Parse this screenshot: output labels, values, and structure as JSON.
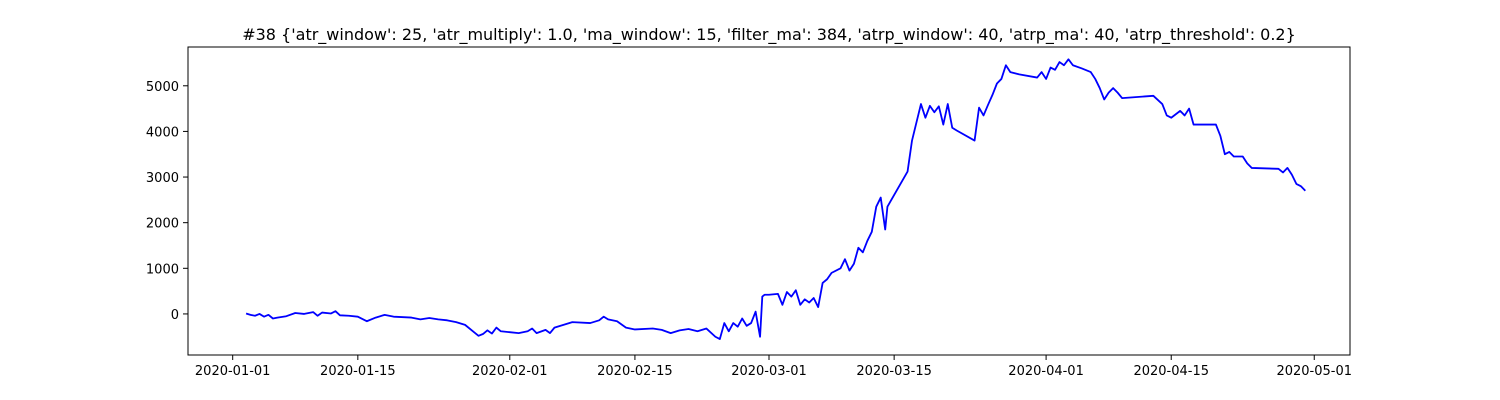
{
  "chart_data": {
    "type": "line",
    "title": "#38 {'atr_window': 25, 'atr_multiply': 1.0, 'ma_window': 15, 'filter_ma': 384, 'atrp_window': 40, 'atrp_ma': 40, 'atrp_threshold': 0.2}",
    "xlabel": "",
    "ylabel": "",
    "xlim": [
      "2019-12-27",
      "2020-05-05"
    ],
    "ylim": [
      -900,
      5850
    ],
    "grid": false,
    "x_ticks": [
      "2020-01-01",
      "2020-01-15",
      "2020-02-01",
      "2020-02-15",
      "2020-03-01",
      "2020-03-15",
      "2020-04-01",
      "2020-04-15",
      "2020-05-01"
    ],
    "y_ticks": [
      0,
      1000,
      2000,
      3000,
      4000,
      5000
    ],
    "series": [
      {
        "color": "#0000ff",
        "points": [
          [
            "2020-01-02 12:00",
            10
          ],
          [
            "2020-01-03 00:00",
            -20
          ],
          [
            "2020-01-03 12:00",
            -40
          ],
          [
            "2020-01-04 00:00",
            0
          ],
          [
            "2020-01-04 12:00",
            -60
          ],
          [
            "2020-01-05 00:00",
            -20
          ],
          [
            "2020-01-05 12:00",
            -100
          ],
          [
            "2020-01-06 00:00",
            -80
          ],
          [
            "2020-01-07 00:00",
            -50
          ],
          [
            "2020-01-08 00:00",
            20
          ],
          [
            "2020-01-09 00:00",
            0
          ],
          [
            "2020-01-10 00:00",
            40
          ],
          [
            "2020-01-10 12:00",
            -40
          ],
          [
            "2020-01-11 00:00",
            30
          ],
          [
            "2020-01-12 00:00",
            10
          ],
          [
            "2020-01-12 12:00",
            60
          ],
          [
            "2020-01-13 00:00",
            -30
          ],
          [
            "2020-01-14 00:00",
            -40
          ],
          [
            "2020-01-15 00:00",
            -60
          ],
          [
            "2020-01-16 00:00",
            -160
          ],
          [
            "2020-01-17 00:00",
            -80
          ],
          [
            "2020-01-18 00:00",
            -20
          ],
          [
            "2020-01-19 00:00",
            -60
          ],
          [
            "2020-01-21 00:00",
            -80
          ],
          [
            "2020-01-22 00:00",
            -120
          ],
          [
            "2020-01-23 00:00",
            -90
          ],
          [
            "2020-01-24 00:00",
            -120
          ],
          [
            "2020-01-25 00:00",
            -140
          ],
          [
            "2020-01-26 00:00",
            -180
          ],
          [
            "2020-01-27 00:00",
            -240
          ],
          [
            "2020-01-28 00:00",
            -400
          ],
          [
            "2020-01-28 12:00",
            -480
          ],
          [
            "2020-01-29 00:00",
            -440
          ],
          [
            "2020-01-29 12:00",
            -360
          ],
          [
            "2020-01-30 00:00",
            -430
          ],
          [
            "2020-01-30 12:00",
            -300
          ],
          [
            "2020-01-31 00:00",
            -380
          ],
          [
            "2020-02-01 00:00",
            -400
          ],
          [
            "2020-02-02 00:00",
            -420
          ],
          [
            "2020-02-03 00:00",
            -380
          ],
          [
            "2020-02-03 12:00",
            -320
          ],
          [
            "2020-02-04 00:00",
            -420
          ],
          [
            "2020-02-05 00:00",
            -350
          ],
          [
            "2020-02-05 12:00",
            -420
          ],
          [
            "2020-02-06 00:00",
            -300
          ],
          [
            "2020-02-07 00:00",
            -240
          ],
          [
            "2020-02-08 00:00",
            -180
          ],
          [
            "2020-02-10 00:00",
            -200
          ],
          [
            "2020-02-11 00:00",
            -140
          ],
          [
            "2020-02-11 12:00",
            -60
          ],
          [
            "2020-02-12 00:00",
            -120
          ],
          [
            "2020-02-13 00:00",
            -160
          ],
          [
            "2020-02-14 00:00",
            -300
          ],
          [
            "2020-02-15 00:00",
            -340
          ],
          [
            "2020-02-17 00:00",
            -320
          ],
          [
            "2020-02-18 00:00",
            -350
          ],
          [
            "2020-02-19 00:00",
            -420
          ],
          [
            "2020-02-20 00:00",
            -360
          ],
          [
            "2020-02-21 00:00",
            -330
          ],
          [
            "2020-02-22 00:00",
            -380
          ],
          [
            "2020-02-23 00:00",
            -320
          ],
          [
            "2020-02-24 00:00",
            -500
          ],
          [
            "2020-02-24 12:00",
            -550
          ],
          [
            "2020-02-25 00:00",
            -200
          ],
          [
            "2020-02-25 12:00",
            -380
          ],
          [
            "2020-02-26 00:00",
            -200
          ],
          [
            "2020-02-26 12:00",
            -280
          ],
          [
            "2020-02-27 00:00",
            -100
          ],
          [
            "2020-02-27 12:00",
            -260
          ],
          [
            "2020-02-28 00:00",
            -200
          ],
          [
            "2020-02-28 12:00",
            50
          ],
          [
            "2020-02-29 00:00",
            -500
          ],
          [
            "2020-02-29 06:00",
            380
          ],
          [
            "2020-02-29 12:00",
            420
          ],
          [
            "2020-03-01 00:00",
            420
          ],
          [
            "2020-03-02 00:00",
            440
          ],
          [
            "2020-03-02 12:00",
            200
          ],
          [
            "2020-03-03 00:00",
            480
          ],
          [
            "2020-03-03 12:00",
            380
          ],
          [
            "2020-03-04 00:00",
            520
          ],
          [
            "2020-03-04 12:00",
            200
          ],
          [
            "2020-03-05 00:00",
            320
          ],
          [
            "2020-03-05 12:00",
            250
          ],
          [
            "2020-03-06 00:00",
            350
          ],
          [
            "2020-03-06 12:00",
            150
          ],
          [
            "2020-03-07 00:00",
            680
          ],
          [
            "2020-03-07 12:00",
            760
          ],
          [
            "2020-03-08 00:00",
            900
          ],
          [
            "2020-03-09 00:00",
            1000
          ],
          [
            "2020-03-09 12:00",
            1200
          ],
          [
            "2020-03-10 00:00",
            950
          ],
          [
            "2020-03-10 12:00",
            1100
          ],
          [
            "2020-03-11 00:00",
            1450
          ],
          [
            "2020-03-11 12:00",
            1350
          ],
          [
            "2020-03-12 00:00",
            1600
          ],
          [
            "2020-03-12 12:00",
            1800
          ],
          [
            "2020-03-13 00:00",
            2350
          ],
          [
            "2020-03-13 12:00",
            2550
          ],
          [
            "2020-03-14 00:00",
            1850
          ],
          [
            "2020-03-14 06:00",
            2350
          ],
          [
            "2020-03-16 12:00",
            3120
          ],
          [
            "2020-03-17 00:00",
            3800
          ],
          [
            "2020-03-17 12:00",
            4200
          ],
          [
            "2020-03-18 00:00",
            4600
          ],
          [
            "2020-03-18 12:00",
            4300
          ],
          [
            "2020-03-19 00:00",
            4560
          ],
          [
            "2020-03-19 12:00",
            4420
          ],
          [
            "2020-03-20 00:00",
            4550
          ],
          [
            "2020-03-20 12:00",
            4150
          ],
          [
            "2020-03-21 00:00",
            4600
          ],
          [
            "2020-03-21 12:00",
            4080
          ],
          [
            "2020-03-22 00:00",
            4020
          ],
          [
            "2020-03-24 00:00",
            3800
          ],
          [
            "2020-03-24 12:00",
            4520
          ],
          [
            "2020-03-25 00:00",
            4350
          ],
          [
            "2020-03-25 12:00",
            4580
          ],
          [
            "2020-03-26 00:00",
            4800
          ],
          [
            "2020-03-26 12:00",
            5050
          ],
          [
            "2020-03-27 00:00",
            5150
          ],
          [
            "2020-03-27 12:00",
            5450
          ],
          [
            "2020-03-28 00:00",
            5300
          ],
          [
            "2020-03-29 00:00",
            5250
          ],
          [
            "2020-03-31 00:00",
            5180
          ],
          [
            "2020-03-31 12:00",
            5300
          ],
          [
            "2020-04-01 00:00",
            5150
          ],
          [
            "2020-04-01 12:00",
            5400
          ],
          [
            "2020-04-02 00:00",
            5350
          ],
          [
            "2020-04-02 12:00",
            5520
          ],
          [
            "2020-04-03 00:00",
            5450
          ],
          [
            "2020-04-03 12:00",
            5580
          ],
          [
            "2020-04-04 00:00",
            5450
          ],
          [
            "2020-04-05 00:00",
            5380
          ],
          [
            "2020-04-06 00:00",
            5300
          ],
          [
            "2020-04-06 12:00",
            5150
          ],
          [
            "2020-04-07 00:00",
            4950
          ],
          [
            "2020-04-07 12:00",
            4700
          ],
          [
            "2020-04-08 00:00",
            4850
          ],
          [
            "2020-04-08 12:00",
            4950
          ],
          [
            "2020-04-09 00:00",
            4850
          ],
          [
            "2020-04-09 12:00",
            4730
          ],
          [
            "2020-04-13 00:00",
            4780
          ],
          [
            "2020-04-14 00:00",
            4600
          ],
          [
            "2020-04-14 12:00",
            4350
          ],
          [
            "2020-04-15 00:00",
            4300
          ],
          [
            "2020-04-16 00:00",
            4450
          ],
          [
            "2020-04-16 12:00",
            4350
          ],
          [
            "2020-04-17 00:00",
            4500
          ],
          [
            "2020-04-17 12:00",
            4150
          ],
          [
            "2020-04-20 00:00",
            4150
          ],
          [
            "2020-04-20 12:00",
            3900
          ],
          [
            "2020-04-21 00:00",
            3500
          ],
          [
            "2020-04-21 12:00",
            3550
          ],
          [
            "2020-04-22 00:00",
            3450
          ],
          [
            "2020-04-23 00:00",
            3450
          ],
          [
            "2020-04-23 12:00",
            3300
          ],
          [
            "2020-04-24 00:00",
            3200
          ],
          [
            "2020-04-27 00:00",
            3180
          ],
          [
            "2020-04-27 12:00",
            3100
          ],
          [
            "2020-04-28 00:00",
            3200
          ],
          [
            "2020-04-28 12:00",
            3050
          ],
          [
            "2020-04-29 00:00",
            2850
          ],
          [
            "2020-04-29 12:00",
            2800
          ],
          [
            "2020-04-30 00:00",
            2700
          ]
        ]
      }
    ]
  }
}
